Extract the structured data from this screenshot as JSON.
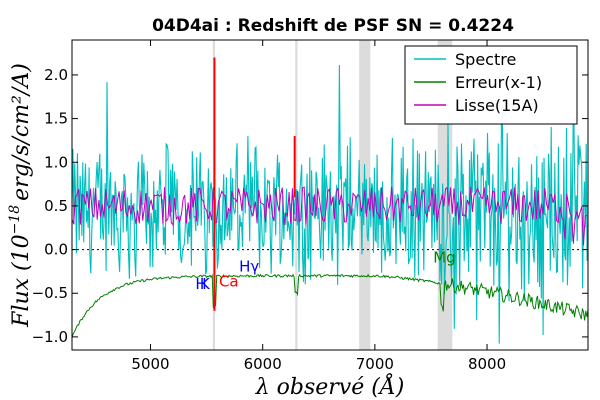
{
  "chart_data": {
    "type": "line",
    "title": "04D4ai : Redshift de PSF SN = 0.4224",
    "xlabel": "λ observé (Å)",
    "ylabel": "Flux (10^-18 erg/s/cm²/A)",
    "ylabel_parts": {
      "main": "Flux (10",
      "exp": "−18",
      "rest": "erg/s/cm²/A)"
    },
    "xlim": [
      4300,
      8900
    ],
    "ylim": [
      -1.15,
      2.4
    ],
    "xticks": [
      5000,
      6000,
      7000,
      8000
    ],
    "xtick_labels": [
      "5000",
      "6000",
      "7000",
      "8000"
    ],
    "yticks": [
      -1.0,
      -0.5,
      0.0,
      0.5,
      1.0,
      1.5,
      2.0
    ],
    "ytick_labels": [
      "−1.0",
      "−0.5",
      "0.0",
      "0.5",
      "1.0",
      "1.5",
      "2.0"
    ],
    "zero_line": true,
    "legend": {
      "position": "top-right",
      "entries": [
        {
          "label": "Spectre",
          "color": "#00bfbf"
        },
        {
          "label": "Erreur(x-1)",
          "color": "#008000"
        },
        {
          "label": "Lisse(15A)",
          "color": "#bf00bf"
        }
      ]
    },
    "shaded_bands": [
      [
        5555,
        5575
      ],
      [
        6290,
        6310
      ],
      [
        6860,
        6960
      ],
      [
        7560,
        7690
      ]
    ],
    "red_spikes": [
      {
        "x": 5570,
        "y1": -0.7,
        "y2": 2.2
      },
      {
        "x": 6285,
        "y1": 0.6,
        "y2": 1.3
      }
    ],
    "annotations": [
      {
        "text": "H",
        "x": 5400,
        "y": -0.45,
        "color": "#0000ff"
      },
      {
        "text": "K",
        "x": 5440,
        "y": -0.45,
        "color": "#0000ff"
      },
      {
        "text": "Ca",
        "x": 5610,
        "y": -0.42,
        "color": "#ff0000"
      },
      {
        "text": "Hγ",
        "x": 5790,
        "y": -0.25,
        "color": "#0000ff"
      },
      {
        "text": "Mg",
        "x": 7520,
        "y": -0.15,
        "color": "#008000"
      }
    ],
    "series": [
      {
        "name": "Spectre",
        "kind": "noisy",
        "color": "#00bfbf",
        "x_start": 4300,
        "x_end": 8900,
        "step": 8,
        "base": 0.45,
        "noise": 0.6
      },
      {
        "name": "Erreur(x-1)",
        "kind": "error",
        "color": "#008000",
        "x_start": 4300,
        "x_end": 8900,
        "step": 10,
        "start_value": -1.0,
        "plateau": -0.3,
        "tail_value": -0.75
      },
      {
        "name": "Lisse(15A)",
        "kind": "smooth",
        "color": "#bf00bf",
        "x_start": 4300,
        "x_end": 8900,
        "step": 15,
        "base": 0.5,
        "noise": 0.22
      }
    ]
  }
}
